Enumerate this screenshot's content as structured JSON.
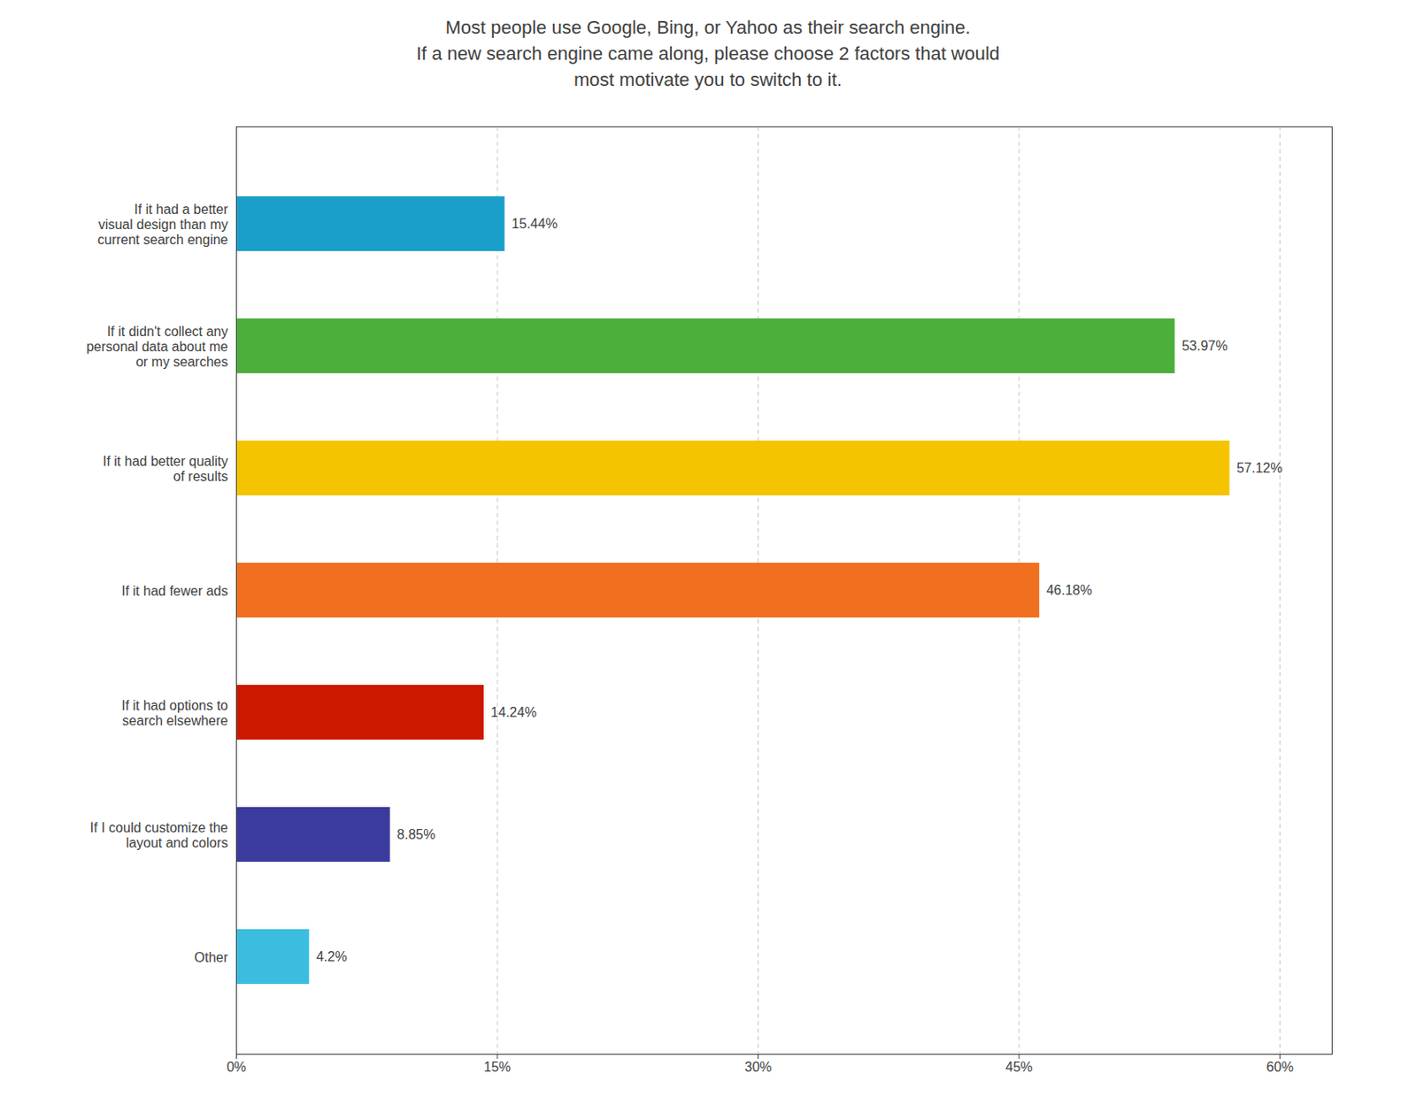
{
  "chart_data": {
    "type": "bar",
    "orientation": "horizontal",
    "title": "Most people use Google, Bing, or Yahoo as their search engine.\nIf a new search engine came along, please choose 2 factors that would\nmost motivate you to switch to it.",
    "categories": [
      "If it had a better\nvisual design than my\ncurrent search engine",
      "If it didn't collect any\npersonal data about me\nor my searches",
      "If it had better quality\nof results",
      "If it had fewer ads",
      "If it had options to\nsearch elsewhere",
      "If I could customize the\nlayout and colors",
      "Other"
    ],
    "values": [
      15.44,
      53.97,
      57.12,
      46.18,
      14.24,
      8.85,
      4.2
    ],
    "value_labels": [
      "15.44%",
      "53.97%",
      "57.12%",
      "46.18%",
      "14.24%",
      "8.85%",
      "4.2%"
    ],
    "colors": [
      "#1a9fca",
      "#4cae3b",
      "#f5c400",
      "#f07020",
      "#cc1800",
      "#3b3b9e",
      "#3bbde0"
    ],
    "xlim": [
      0,
      63
    ],
    "xticks": [
      {
        "value": 0,
        "label": "0%"
      },
      {
        "value": 15,
        "label": "15%"
      },
      {
        "value": 30,
        "label": "30%"
      },
      {
        "value": 45,
        "label": "45%"
      },
      {
        "value": 60,
        "label": "60%"
      }
    ],
    "grid": true,
    "data_labels": true
  }
}
